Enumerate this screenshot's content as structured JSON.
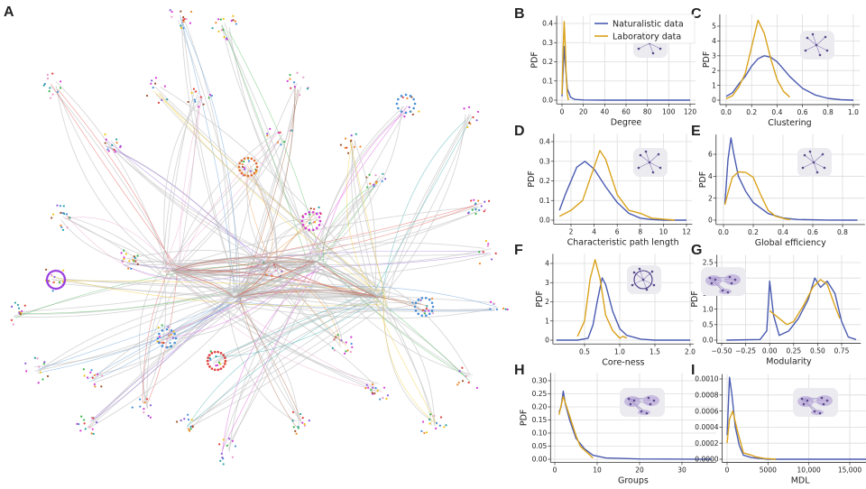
{
  "figure": {
    "panel_a_label": "A",
    "colors": {
      "naturalistic": "#4a5bb0",
      "laboratory": "#d9a21a",
      "grid": "#dcdcdc",
      "network_edges": "#c8c8c8"
    },
    "legend": {
      "naturalistic": "Naturalistic data",
      "laboratory": "Laboratory data",
      "placement": "top-right of panel B"
    }
  },
  "chart_data": [
    {
      "panel": "B",
      "type": "line",
      "xlabel": "Degree",
      "ylabel": "PDF",
      "grid": true,
      "xlim": [
        -5,
        125
      ],
      "ylim": [
        -0.02,
        0.44
      ],
      "xticks": [
        0,
        20,
        40,
        60,
        80,
        100,
        120
      ],
      "xtick_labels": [
        "0",
        "20",
        "40",
        "60",
        "80",
        "100",
        "120"
      ],
      "yticks": [
        0,
        0.1,
        0.2,
        0.3,
        0.4
      ],
      "ytick_labels": [
        "0.0",
        "0.1",
        "0.2",
        "0.3",
        "0.4"
      ],
      "inset": "star-graph-icon",
      "series": [
        {
          "name": "Naturalistic data",
          "points": [
            [
              0,
              0.02
            ],
            [
              1,
              0.15
            ],
            [
              2,
              0.28
            ],
            [
              3,
              0.2
            ],
            [
              5,
              0.06
            ],
            [
              8,
              0.015
            ],
            [
              12,
              0.004
            ],
            [
              20,
              0.001
            ],
            [
              40,
              0
            ],
            [
              120,
              0
            ]
          ]
        },
        {
          "name": "Laboratory data",
          "points": [
            [
              0,
              0.03
            ],
            [
              1,
              0.25
            ],
            [
              2,
              0.41
            ],
            [
              3,
              0.3
            ],
            [
              4,
              0.12
            ],
            [
              5,
              0.03
            ],
            [
              6,
              0
            ]
          ]
        }
      ]
    },
    {
      "panel": "C",
      "type": "line",
      "xlabel": "Clustering",
      "ylabel": "PDF",
      "grid": true,
      "xlim": [
        -0.05,
        1.05
      ],
      "ylim": [
        -0.3,
        5.8
      ],
      "xticks": [
        0,
        0.2,
        0.4,
        0.6,
        0.8,
        1.0
      ],
      "xtick_labels": [
        "0.0",
        "0.2",
        "0.4",
        "0.6",
        "0.8",
        "1.0"
      ],
      "yticks": [
        0,
        1,
        2,
        3,
        4,
        5
      ],
      "ytick_labels": [
        "0",
        "1",
        "2",
        "3",
        "4",
        "5"
      ],
      "inset": "triangle-graph-icon",
      "series": [
        {
          "name": "Naturalistic data",
          "points": [
            [
              0,
              0.25
            ],
            [
              0.05,
              0.5
            ],
            [
              0.1,
              1.1
            ],
            [
              0.15,
              1.6
            ],
            [
              0.2,
              2.3
            ],
            [
              0.25,
              2.8
            ],
            [
              0.3,
              3.0
            ],
            [
              0.35,
              2.9
            ],
            [
              0.4,
              2.6
            ],
            [
              0.45,
              2.1
            ],
            [
              0.5,
              1.6
            ],
            [
              0.6,
              0.8
            ],
            [
              0.7,
              0.35
            ],
            [
              0.8,
              0.12
            ],
            [
              0.9,
              0.03
            ],
            [
              1.0,
              0
            ]
          ]
        },
        {
          "name": "Laboratory data",
          "points": [
            [
              0,
              0.1
            ],
            [
              0.05,
              0.3
            ],
            [
              0.1,
              0.9
            ],
            [
              0.15,
              1.8
            ],
            [
              0.2,
              3.6
            ],
            [
              0.25,
              5.4
            ],
            [
              0.3,
              4.5
            ],
            [
              0.35,
              2.8
            ],
            [
              0.4,
              1.4
            ],
            [
              0.45,
              0.6
            ],
            [
              0.5,
              0.2
            ]
          ]
        }
      ]
    },
    {
      "panel": "D",
      "type": "line",
      "xlabel": "Characteristic path length",
      "ylabel": "PDF",
      "grid": true,
      "xlim": [
        0.5,
        12.5
      ],
      "ylim": [
        -0.02,
        0.44
      ],
      "xticks": [
        2,
        4,
        6,
        8,
        10,
        12
      ],
      "xtick_labels": [
        "2",
        "4",
        "6",
        "8",
        "10",
        "12"
      ],
      "yticks": [
        0,
        0.1,
        0.2,
        0.3,
        0.4
      ],
      "ytick_labels": [
        "0.0",
        "0.1",
        "0.2",
        "0.3",
        "0.4"
      ],
      "inset": "path-graph-icon",
      "series": [
        {
          "name": "Naturalistic data",
          "points": [
            [
              1,
              0.05
            ],
            [
              1.5,
              0.13
            ],
            [
              2,
              0.2
            ],
            [
              2.5,
              0.27
            ],
            [
              3.2,
              0.3
            ],
            [
              4,
              0.26
            ],
            [
              5,
              0.17
            ],
            [
              6,
              0.09
            ],
            [
              7,
              0.035
            ],
            [
              8,
              0.01
            ],
            [
              9,
              0.003
            ],
            [
              10,
              0
            ],
            [
              12,
              0
            ]
          ]
        },
        {
          "name": "Laboratory data",
          "points": [
            [
              1,
              0.02
            ],
            [
              2,
              0.05
            ],
            [
              3,
              0.1
            ],
            [
              3.7,
              0.22
            ],
            [
              4.5,
              0.355
            ],
            [
              5,
              0.31
            ],
            [
              6,
              0.13
            ],
            [
              7,
              0.05
            ],
            [
              8,
              0.035
            ],
            [
              9,
              0.01
            ],
            [
              10,
              0.005
            ],
            [
              11,
              0
            ]
          ]
        }
      ]
    },
    {
      "panel": "E",
      "type": "line",
      "xlabel": "Global efficiency",
      "ylabel": "PDF",
      "grid": true,
      "xlim": [
        -0.05,
        0.95
      ],
      "ylim": [
        -0.4,
        7.8
      ],
      "xticks": [
        0,
        0.2,
        0.4,
        0.6,
        0.8
      ],
      "xtick_labels": [
        "0.0",
        "0.2",
        "0.4",
        "0.6",
        "0.8"
      ],
      "yticks": [
        0,
        2,
        4,
        6
      ],
      "ytick_labels": [
        "0",
        "2",
        "4",
        "6"
      ],
      "inset": "path-graph-icon",
      "series": [
        {
          "name": "Naturalistic data",
          "points": [
            [
              0.01,
              1.5
            ],
            [
              0.03,
              5.5
            ],
            [
              0.05,
              7.5
            ],
            [
              0.07,
              6
            ],
            [
              0.1,
              4
            ],
            [
              0.15,
              2.6
            ],
            [
              0.2,
              1.6
            ],
            [
              0.3,
              0.6
            ],
            [
              0.4,
              0.2
            ],
            [
              0.5,
              0.06
            ],
            [
              0.7,
              0.01
            ],
            [
              0.9,
              0
            ]
          ]
        },
        {
          "name": "Laboratory data",
          "points": [
            [
              0.01,
              1.4
            ],
            [
              0.03,
              2.5
            ],
            [
              0.06,
              3.9
            ],
            [
              0.1,
              4.4
            ],
            [
              0.15,
              4.35
            ],
            [
              0.2,
              3.9
            ],
            [
              0.25,
              2.3
            ],
            [
              0.3,
              0.9
            ],
            [
              0.35,
              0.35
            ],
            [
              0.42,
              0.1
            ],
            [
              0.45,
              0.05
            ]
          ]
        }
      ]
    },
    {
      "panel": "F",
      "type": "line",
      "xlabel": "Core-ness",
      "ylabel": "PDF",
      "grid": true,
      "xlim": [
        0.05,
        2.05
      ],
      "ylim": [
        -0.2,
        4.5
      ],
      "xticks": [
        0.5,
        1.0,
        1.5,
        2.0
      ],
      "xtick_labels": [
        "0.5",
        "1.0",
        "1.5",
        "2.0"
      ],
      "yticks": [
        0,
        1,
        2,
        3,
        4
      ],
      "ytick_labels": [
        "0",
        "1",
        "2",
        "3",
        "4"
      ],
      "inset": "core-periphery-icon",
      "series": [
        {
          "name": "Naturalistic data",
          "points": [
            [
              0.1,
              0
            ],
            [
              0.4,
              0
            ],
            [
              0.55,
              0.1
            ],
            [
              0.62,
              0.8
            ],
            [
              0.68,
              2
            ],
            [
              0.75,
              3.25
            ],
            [
              0.8,
              2.9
            ],
            [
              0.9,
              1.5
            ],
            [
              1.0,
              0.6
            ],
            [
              1.1,
              0.25
            ],
            [
              1.3,
              0.05
            ],
            [
              1.5,
              0
            ],
            [
              2.0,
              0
            ]
          ]
        },
        {
          "name": "Laboratory data",
          "points": [
            [
              0.4,
              0.2
            ],
            [
              0.5,
              1.0
            ],
            [
              0.58,
              3.2
            ],
            [
              0.65,
              4.2
            ],
            [
              0.72,
              3.2
            ],
            [
              0.8,
              1.3
            ],
            [
              0.9,
              0.5
            ],
            [
              1.0,
              0.1
            ],
            [
              1.05,
              0.2
            ],
            [
              1.1,
              0.1
            ]
          ]
        }
      ]
    },
    {
      "panel": "G",
      "type": "line",
      "xlabel": "Modularity",
      "ylabel": "PDF",
      "grid": true,
      "xlim": [
        -0.55,
        0.95
      ],
      "ylim": [
        -0.1,
        2.75
      ],
      "xticks": [
        -0.5,
        -0.25,
        0,
        0.25,
        0.5,
        0.75
      ],
      "xtick_labels": [
        "−0.50",
        "−0.25",
        "0.00",
        "0.25",
        "0.50",
        "0.75"
      ],
      "yticks": [
        0,
        0.5,
        1,
        1.5,
        2,
        2.5
      ],
      "ytick_labels": [
        "0.0",
        "0.5",
        "1.0",
        "1.5",
        "2.0",
        "2.5"
      ],
      "inset": "modules-icon",
      "series": [
        {
          "name": "Naturalistic data",
          "points": [
            [
              -0.45,
              0
            ],
            [
              -0.1,
              0.02
            ],
            [
              -0.03,
              0.3
            ],
            [
              0,
              1.9
            ],
            [
              0.04,
              0.8
            ],
            [
              0.1,
              0.15
            ],
            [
              0.2,
              0.3
            ],
            [
              0.3,
              0.7
            ],
            [
              0.4,
              1.3
            ],
            [
              0.47,
              2.0
            ],
            [
              0.53,
              1.7
            ],
            [
              0.6,
              1.9
            ],
            [
              0.68,
              1.5
            ],
            [
              0.75,
              0.6
            ],
            [
              0.82,
              0.1
            ],
            [
              0.9,
              0.02
            ]
          ]
        },
        {
          "name": "Laboratory data",
          "points": [
            [
              0,
              0.95
            ],
            [
              0.1,
              0.7
            ],
            [
              0.18,
              0.5
            ],
            [
              0.25,
              0.6
            ],
            [
              0.35,
              1.1
            ],
            [
              0.45,
              1.7
            ],
            [
              0.53,
              1.95
            ],
            [
              0.6,
              1.8
            ],
            [
              0.68,
              1.1
            ],
            [
              0.73,
              0.7
            ]
          ]
        }
      ]
    },
    {
      "panel": "H",
      "type": "line",
      "xlabel": "Groups",
      "ylabel": "PDF",
      "grid": true,
      "xlim": [
        -1,
        38
      ],
      "ylim": [
        -0.012,
        0.33
      ],
      "xticks": [
        0,
        10,
        20,
        30
      ],
      "xtick_labels": [
        "0",
        "10",
        "20",
        "30"
      ],
      "yticks": [
        0,
        0.05,
        0.1,
        0.15,
        0.2,
        0.25,
        0.3
      ],
      "ytick_labels": [
        "0.00",
        "0.05",
        "0.10",
        "0.15",
        "0.20",
        "0.25",
        "0.30"
      ],
      "inset": "modules-icon",
      "series": [
        {
          "name": "Naturalistic data",
          "points": [
            [
              1,
              0.18
            ],
            [
              1.5,
              0.2
            ],
            [
              2,
              0.26
            ],
            [
              2.5,
              0.21
            ],
            [
              3.5,
              0.15
            ],
            [
              5,
              0.08
            ],
            [
              7,
              0.04
            ],
            [
              9,
              0.015
            ],
            [
              12,
              0.005
            ],
            [
              20,
              0.001
            ],
            [
              37,
              0
            ]
          ]
        },
        {
          "name": "Laboratory data",
          "points": [
            [
              1,
              0.17
            ],
            [
              2,
              0.24
            ],
            [
              3,
              0.19
            ],
            [
              4,
              0.14
            ],
            [
              5,
              0.09
            ],
            [
              6,
              0.05
            ],
            [
              7,
              0.035
            ],
            [
              8,
              0.02
            ],
            [
              9,
              0.005
            ]
          ]
        }
      ]
    },
    {
      "panel": "I",
      "type": "line",
      "xlabel": "MDL",
      "ylabel": "",
      "grid": true,
      "xlim": [
        -600,
        18500
      ],
      "ylim": [
        -4e-05,
        0.00106
      ],
      "xticks": [
        0,
        5000,
        10000,
        15000
      ],
      "xtick_labels": [
        "0",
        "5000",
        "10,000",
        "15,000"
      ],
      "yticks": [
        0,
        0.0002,
        0.0004,
        0.0006,
        0.0008,
        0.001
      ],
      "ytick_labels": [
        "0.0000",
        "0.0002",
        "0.0004",
        "0.0006",
        "0.0008",
        "0.0010"
      ],
      "inset": "modules-icon",
      "series": [
        {
          "name": "Naturalistic data",
          "points": [
            [
              0,
              0.0003
            ],
            [
              300,
              0.00102
            ],
            [
              600,
              0.0008
            ],
            [
              1000,
              0.0004
            ],
            [
              1500,
              0.00017
            ],
            [
              2000,
              5e-05
            ],
            [
              3000,
              2e-05
            ],
            [
              5000,
              0
            ],
            [
              17500,
              0
            ]
          ]
        },
        {
          "name": "Laboratory data",
          "points": [
            [
              0,
              0.0002
            ],
            [
              300,
              0.0005
            ],
            [
              700,
              0.0006
            ],
            [
              1200,
              0.00038
            ],
            [
              2000,
              8e-05
            ],
            [
              3000,
              5e-05
            ],
            [
              3500,
              3e-05
            ],
            [
              4500,
              1e-05
            ],
            [
              6000,
              0
            ]
          ]
        }
      ]
    }
  ]
}
